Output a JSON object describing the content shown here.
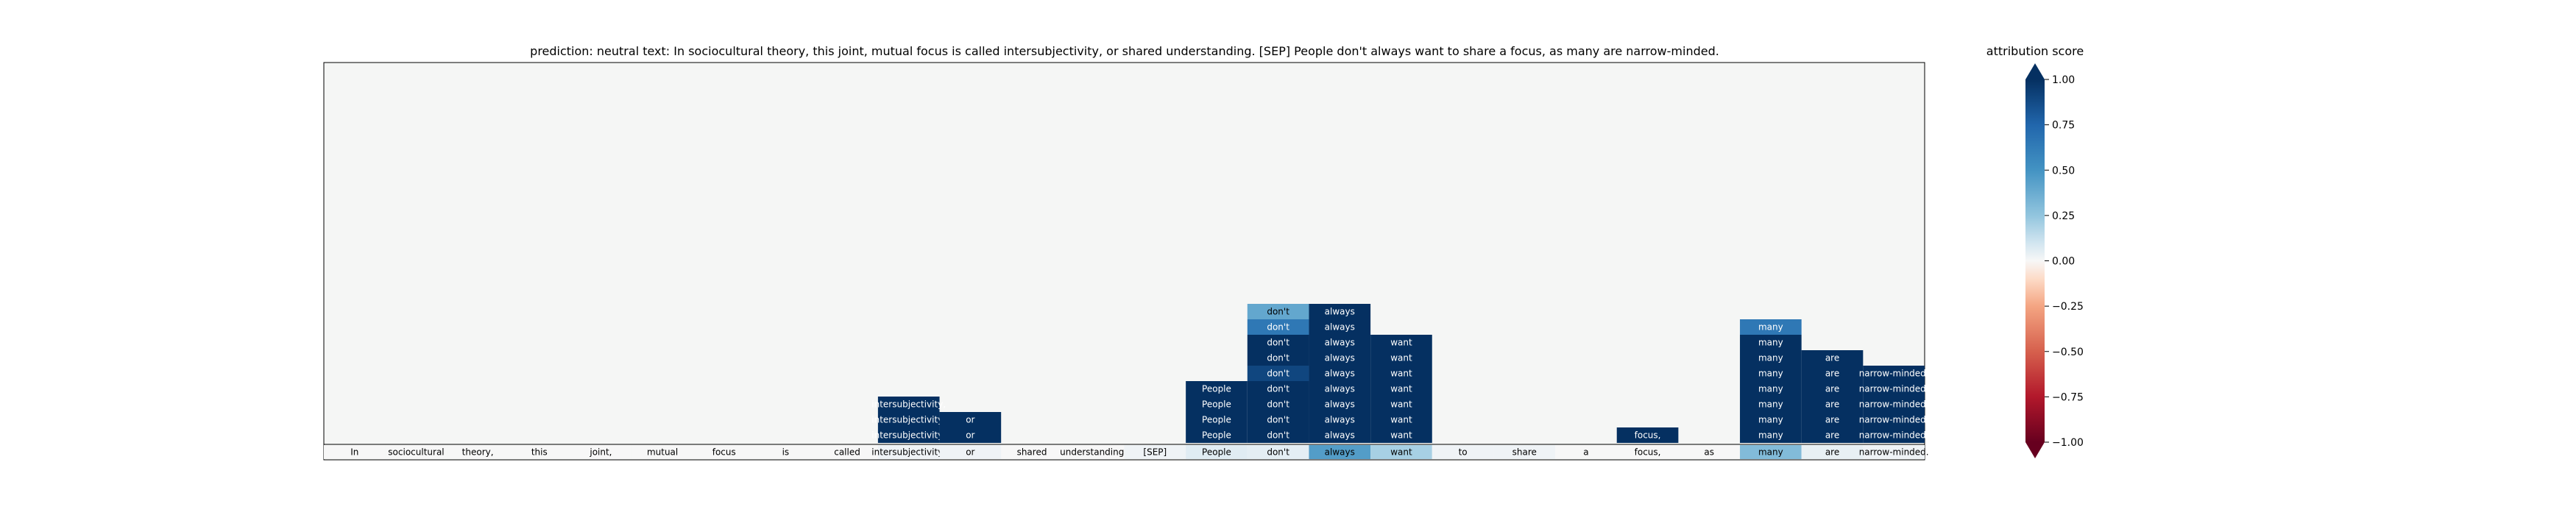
{
  "chart_data": {
    "type": "heatmap",
    "title": "prediction:  neutral     text:  In sociocultural theory, this joint, mutual focus is called intersubjectivity, or shared understanding. [SEP] People don't always want to share a focus, as many are narrow-minded.",
    "tokens": [
      "In",
      "sociocultural",
      "theory,",
      "this",
      "joint,",
      "mutual",
      "focus",
      "is",
      "called",
      "intersubjectivity,",
      "or",
      "shared",
      "understanding.",
      "[SEP]",
      "People",
      "don't",
      "always",
      "want",
      "to",
      "share",
      "a",
      "focus,",
      "as",
      "many",
      "are",
      "narrow-minded."
    ],
    "base_row_scores": [
      0.0,
      0.0,
      0.0,
      0.0,
      0.0,
      0.0,
      0.0,
      0.0,
      0.0,
      0.02,
      0.02,
      0.0,
      0.0,
      0.02,
      0.06,
      0.05,
      0.45,
      0.2,
      0.02,
      0.02,
      0.0,
      0.0,
      0.0,
      0.3,
      0.04,
      0.02
    ],
    "stack_rows": [
      {
        "cells": [
          {
            "token": 9,
            "value": 1.0,
            "text": "intersubjectivity,"
          },
          {
            "token": 10,
            "value": 1.0,
            "text": "or"
          },
          {
            "token": 14,
            "value": 1.0,
            "text": "People"
          },
          {
            "token": 15,
            "value": 1.0,
            "text": "don't"
          },
          {
            "token": 16,
            "value": 1.0,
            "text": "always"
          },
          {
            "token": 17,
            "value": 1.0,
            "text": "want"
          },
          {
            "token": 21,
            "value": 1.0,
            "text": "focus,"
          },
          {
            "token": 23,
            "value": 1.0,
            "text": "many"
          },
          {
            "token": 24,
            "value": 1.0,
            "text": "are"
          },
          {
            "token": 25,
            "value": 1.0,
            "text": "narrow-minded."
          }
        ]
      },
      {
        "cells": [
          {
            "token": 9,
            "value": 1.0,
            "text": "intersubjectivity,"
          },
          {
            "token": 10,
            "value": 1.0,
            "text": "or"
          },
          {
            "token": 14,
            "value": 1.0,
            "text": "People"
          },
          {
            "token": 15,
            "value": 1.0,
            "text": "don't"
          },
          {
            "token": 16,
            "value": 1.0,
            "text": "always"
          },
          {
            "token": 17,
            "value": 1.0,
            "text": "want"
          },
          {
            "token": 23,
            "value": 1.0,
            "text": "many"
          },
          {
            "token": 24,
            "value": 1.0,
            "text": "are"
          },
          {
            "token": 25,
            "value": 1.0,
            "text": "narrow-minded."
          }
        ]
      },
      {
        "cells": [
          {
            "token": 9,
            "value": 1.0,
            "text": "intersubjectivity,"
          },
          {
            "token": 14,
            "value": 1.0,
            "text": "People"
          },
          {
            "token": 15,
            "value": 1.0,
            "text": "don't"
          },
          {
            "token": 16,
            "value": 1.0,
            "text": "always"
          },
          {
            "token": 17,
            "value": 1.0,
            "text": "want"
          },
          {
            "token": 23,
            "value": 1.0,
            "text": "many"
          },
          {
            "token": 24,
            "value": 1.0,
            "text": "are"
          },
          {
            "token": 25,
            "value": 1.0,
            "text": "narrow-minded."
          }
        ]
      },
      {
        "cells": [
          {
            "token": 14,
            "value": 1.0,
            "text": "People"
          },
          {
            "token": 15,
            "value": 1.0,
            "text": "don't"
          },
          {
            "token": 16,
            "value": 1.0,
            "text": "always"
          },
          {
            "token": 17,
            "value": 1.0,
            "text": "want"
          },
          {
            "token": 23,
            "value": 1.0,
            "text": "many"
          },
          {
            "token": 24,
            "value": 1.0,
            "text": "are"
          },
          {
            "token": 25,
            "value": 1.0,
            "text": "narrow-minded."
          }
        ]
      },
      {
        "cells": [
          {
            "token": 15,
            "value": 0.9,
            "text": "don't"
          },
          {
            "token": 16,
            "value": 1.0,
            "text": "always"
          },
          {
            "token": 17,
            "value": 1.0,
            "text": "want"
          },
          {
            "token": 23,
            "value": 1.0,
            "text": "many"
          },
          {
            "token": 24,
            "value": 1.0,
            "text": "are"
          },
          {
            "token": 25,
            "value": 1.0,
            "text": "narrow-minded."
          }
        ]
      },
      {
        "cells": [
          {
            "token": 15,
            "value": 1.0,
            "text": "don't"
          },
          {
            "token": 16,
            "value": 1.0,
            "text": "always"
          },
          {
            "token": 17,
            "value": 1.0,
            "text": "want"
          },
          {
            "token": 23,
            "value": 1.0,
            "text": "many"
          },
          {
            "token": 24,
            "value": 1.0,
            "text": "are"
          }
        ]
      },
      {
        "cells": [
          {
            "token": 15,
            "value": 1.0,
            "text": "don't"
          },
          {
            "token": 16,
            "value": 1.0,
            "text": "always"
          },
          {
            "token": 17,
            "value": 1.0,
            "text": "want"
          },
          {
            "token": 23,
            "value": 1.0,
            "text": "many"
          }
        ]
      },
      {
        "cells": [
          {
            "token": 15,
            "value": 0.65,
            "text": "don't"
          },
          {
            "token": 16,
            "value": 1.0,
            "text": "always"
          },
          {
            "token": 23,
            "value": 0.65,
            "text": "many"
          }
        ]
      },
      {
        "cells": [
          {
            "token": 15,
            "value": 0.4,
            "text": "don't"
          },
          {
            "token": 16,
            "value": 1.0,
            "text": "always"
          }
        ]
      }
    ],
    "colorbar": {
      "label": "attribution score",
      "ticks": [
        1.0,
        0.75,
        0.5,
        0.25,
        0.0,
        -0.25,
        -0.5,
        -0.75,
        -1.0
      ],
      "tick_labels": [
        "1.00",
        "0.75",
        "0.50",
        "0.25",
        "0.00",
        "−0.25",
        "−0.50",
        "−0.75",
        "−1.00"
      ],
      "range": [
        -1.0,
        1.0
      ],
      "colormap": "RdBu"
    },
    "background_color": "#f5f6f5"
  }
}
